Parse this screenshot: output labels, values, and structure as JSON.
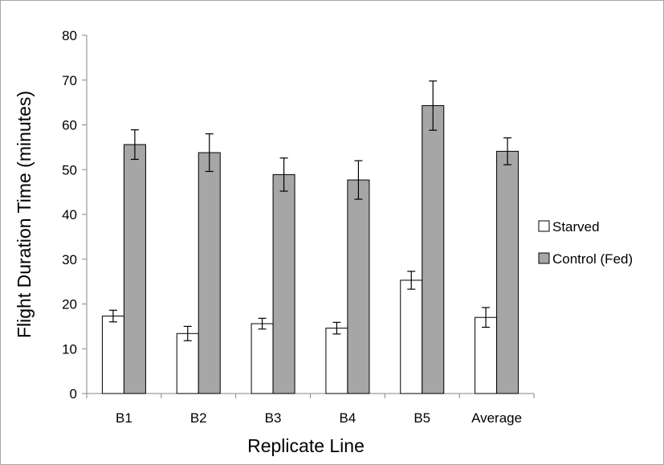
{
  "chart_data": {
    "type": "bar",
    "title": "",
    "xlabel": "Replicate Line",
    "ylabel": "Flight Duration Time (minutes)",
    "ylim": [
      0,
      80
    ],
    "yticks": [
      0,
      10,
      20,
      30,
      40,
      50,
      60,
      70,
      80
    ],
    "categories": [
      "B1",
      "B2",
      "B3",
      "B4",
      "B5",
      "Average"
    ],
    "series": [
      {
        "name": "Starved",
        "color": "#ffffff",
        "values": [
          17.3,
          13.4,
          15.6,
          14.6,
          25.3,
          17.0
        ],
        "errors": [
          1.3,
          1.6,
          1.2,
          1.3,
          2.0,
          2.2
        ]
      },
      {
        "name": "Control (Fed)",
        "color": "#a6a6a6",
        "values": [
          55.6,
          53.8,
          48.9,
          47.7,
          64.3,
          54.1
        ],
        "errors": [
          3.3,
          4.2,
          3.7,
          4.3,
          5.5,
          3.0
        ]
      }
    ],
    "legend_position": "right",
    "grid": false
  }
}
